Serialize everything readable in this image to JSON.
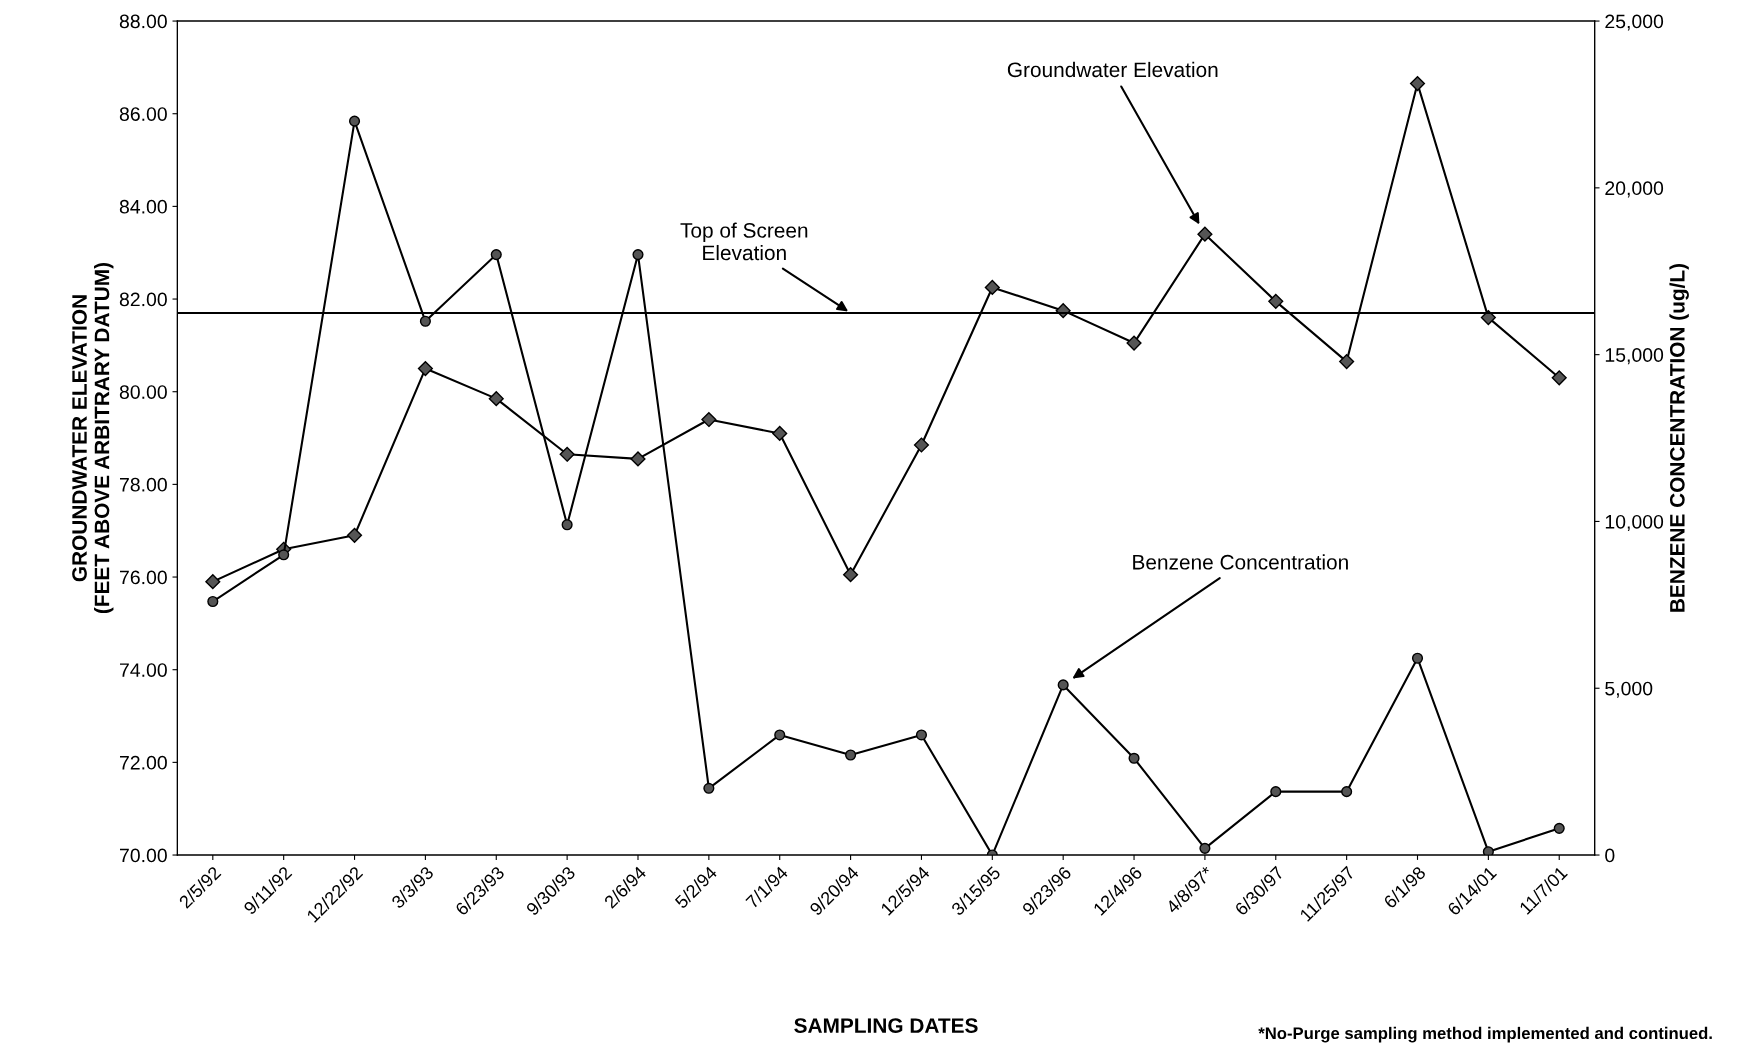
{
  "chart_data": {
    "type": "line",
    "xlabel": "SAMPLING DATES",
    "ylabel": "GROUNDWATER ELEVATION\n(FEET ABOVE ARBITRARY DATUM)",
    "y2label": "BENZENE CONCENTRATION (ug/L)",
    "categories": [
      "2/5/92",
      "9/11/92",
      "12/22/92",
      "3/3/93",
      "6/23/93",
      "9/30/93",
      "2/6/94",
      "5/2/94",
      "7/1/94",
      "9/20/94",
      "12/5/94",
      "3/15/95",
      "9/23/96",
      "12/4/96",
      "4/8/97*",
      "6/30/97",
      "11/25/97",
      "6/1/98",
      "6/14/01",
      "11/7/01"
    ],
    "series": [
      {
        "name": "Groundwater Elevation",
        "color": "#000000",
        "marker": "diamond",
        "values": [
          75.9,
          76.6,
          76.9,
          80.5,
          79.85,
          78.65,
          78.55,
          79.4,
          79.1,
          76.05,
          78.85,
          82.25,
          81.75,
          81.05,
          83.4,
          81.95,
          80.65,
          86.65,
          81.6,
          80.3
        ]
      },
      {
        "name": "Benzene Concentration",
        "color": "#000000",
        "marker": "circle",
        "axis": "y2",
        "values": [
          7600,
          9000,
          22000,
          16000,
          18000,
          9900,
          18000,
          2000,
          3600,
          3000,
          3600,
          0,
          5100,
          2900,
          200,
          1900,
          1900,
          5900,
          100,
          800
        ]
      }
    ],
    "ylim": [
      70,
      88
    ],
    "yticks": [
      {
        "value": 70,
        "label": "70.00"
      },
      {
        "value": 72,
        "label": "72.00"
      },
      {
        "value": 74,
        "label": "74.00"
      },
      {
        "value": 76,
        "label": "76.00"
      },
      {
        "value": 78,
        "label": "78.00"
      },
      {
        "value": 80,
        "label": "80.00"
      },
      {
        "value": 82,
        "label": "82.00"
      },
      {
        "value": 84,
        "label": "84.00"
      },
      {
        "value": 86,
        "label": "86.00"
      },
      {
        "value": 88,
        "label": "88.00"
      }
    ],
    "y2lim": [
      0,
      25000
    ],
    "y2ticks": [
      0,
      {
        "value": 5000,
        "label": "5,000"
      },
      {
        "value": 10000,
        "label": "10,000"
      },
      {
        "value": 15000,
        "label": "15,000"
      },
      {
        "value": 20000,
        "label": "20,000"
      },
      {
        "value": 25000,
        "label": "25,000"
      }
    ],
    "ref_lines": [
      {
        "axis": "y",
        "value": 81.7,
        "label": "Top of Screen\nElevation",
        "color": "#000000"
      }
    ],
    "annotations": [
      "*No-Purge sampling method implemented and continued."
    ],
    "grid": false,
    "legend": false,
    "line_style": "solid"
  }
}
